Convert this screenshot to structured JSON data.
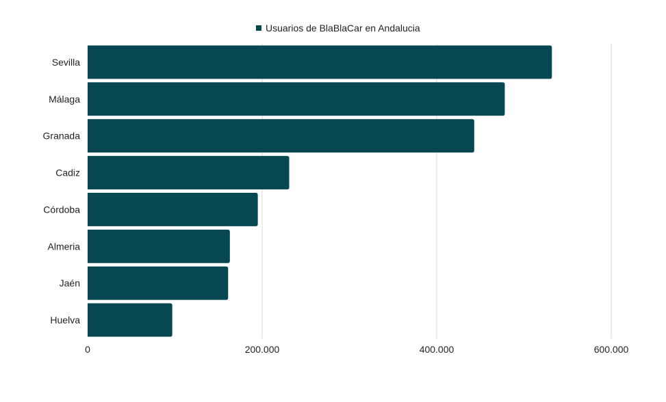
{
  "chart_data": {
    "type": "bar",
    "orientation": "horizontal",
    "categories": [
      "Sevilla",
      "Málaga",
      "Granada",
      "Cadiz",
      "Córdoba",
      "Almeria",
      "Jaén",
      "Huelva"
    ],
    "series": [
      {
        "name": "Usuarios de BlaBlaCar en Andalucia",
        "values": [
          532000,
          478000,
          443000,
          231000,
          195000,
          163000,
          161000,
          97000
        ],
        "color": "#064751"
      }
    ],
    "xlim": [
      0,
      600000
    ],
    "x_ticks": [
      0,
      200000,
      400000,
      600000
    ],
    "x_tick_labels": [
      "0",
      "200.000",
      "400.000",
      "600.000"
    ],
    "grid": true,
    "legend_position": "top-center"
  },
  "colors": {
    "bar": "#064751",
    "grid": "#d9d9d9",
    "text": "#222222",
    "background": "#ffffff"
  }
}
